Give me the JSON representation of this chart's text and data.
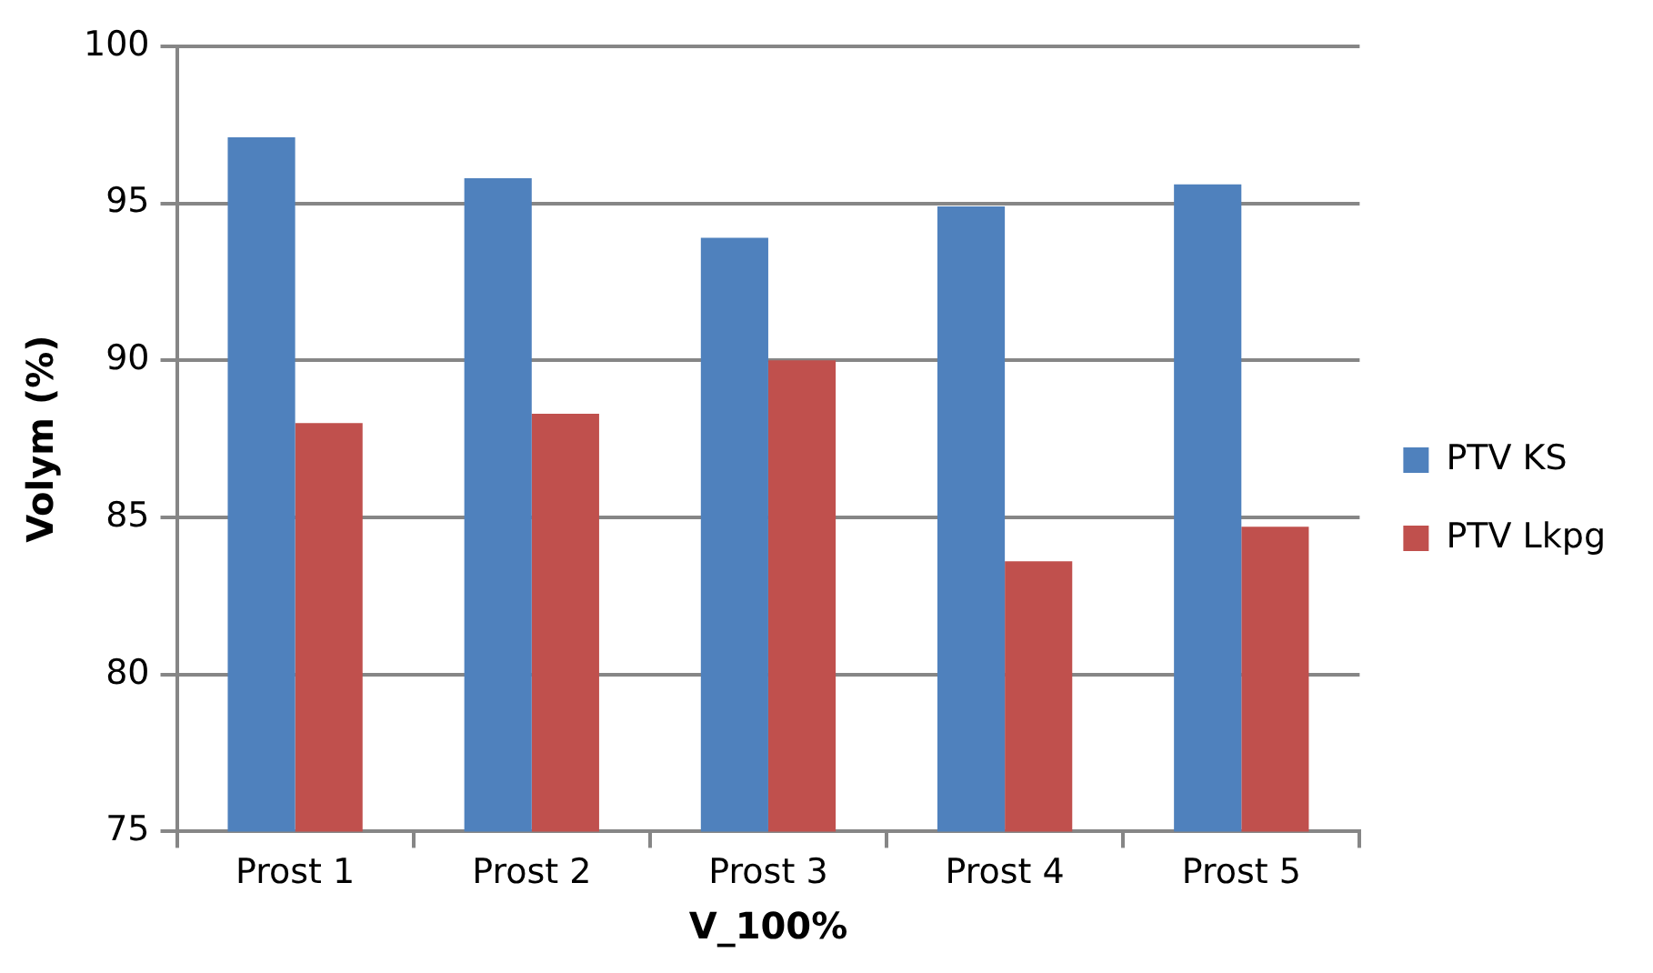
{
  "chart_data": {
    "type": "bar",
    "xlabel": "V_100%",
    "ylabel": "Volym (%)",
    "categories": [
      "Prost 1",
      "Prost 2",
      "Prost 3",
      "Prost 4",
      "Prost 5"
    ],
    "series": [
      {
        "name": "PTV KS",
        "color": "#4f81bd",
        "values": [
          97.1,
          95.8,
          93.9,
          94.9,
          95.6
        ]
      },
      {
        "name": "PTV Lkpg",
        "color": "#c0504d",
        "values": [
          88.0,
          88.3,
          90.0,
          83.6,
          84.7
        ]
      }
    ],
    "ylim": [
      75,
      100
    ],
    "yticks": [
      75,
      80,
      85,
      90,
      95,
      100
    ],
    "grid": "y",
    "legend": "right"
  }
}
